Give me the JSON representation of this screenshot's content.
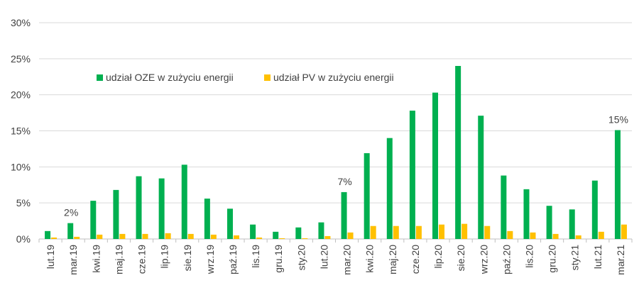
{
  "chart_data": {
    "type": "bar",
    "title": "",
    "xlabel": "",
    "ylabel": "",
    "ylim": [
      0,
      30
    ],
    "yticks": [
      "0%",
      "5%",
      "10%",
      "15%",
      "20%",
      "25%",
      "30%"
    ],
    "grid": true,
    "legend_position": "top-left",
    "categories": [
      "lut.19",
      "mar.19",
      "kwi.19",
      "maj.19",
      "cze.19",
      "lip.19",
      "sie.19",
      "wrz.19",
      "paź.19",
      "lis.19",
      "gru.19",
      "sty.20",
      "lut.20",
      "mar.20",
      "kwi.20",
      "maj.20",
      "cze.20",
      "lip.20",
      "sie.20",
      "wrz.20",
      "paź.20",
      "lis.20",
      "gru.20",
      "sty.21",
      "lut.21",
      "mar.21"
    ],
    "series": [
      {
        "name": "udział OZE w zużyciu energii",
        "color": "#00b050",
        "values": [
          1.1,
          2.2,
          5.3,
          6.8,
          8.7,
          8.4,
          10.3,
          5.6,
          4.2,
          2.0,
          1.0,
          1.6,
          2.3,
          6.5,
          11.9,
          14.0,
          17.8,
          20.3,
          24.0,
          17.1,
          8.8,
          6.9,
          4.6,
          4.1,
          8.1,
          15.1
        ]
      },
      {
        "name": "udział PV w zużyciu energii",
        "color": "#ffc000",
        "values": [
          0.2,
          0.3,
          0.6,
          0.7,
          0.7,
          0.8,
          0.7,
          0.6,
          0.5,
          0.2,
          0.1,
          0.1,
          0.4,
          0.9,
          1.8,
          1.8,
          1.8,
          2.0,
          2.1,
          1.8,
          1.1,
          0.9,
          0.7,
          0.5,
          1.0,
          2.0
        ]
      }
    ],
    "annotations": [
      {
        "label": "2%",
        "category": "mar.19"
      },
      {
        "label": "7%",
        "category": "mar.20"
      },
      {
        "label": "15%",
        "category": "mar.21"
      }
    ]
  }
}
